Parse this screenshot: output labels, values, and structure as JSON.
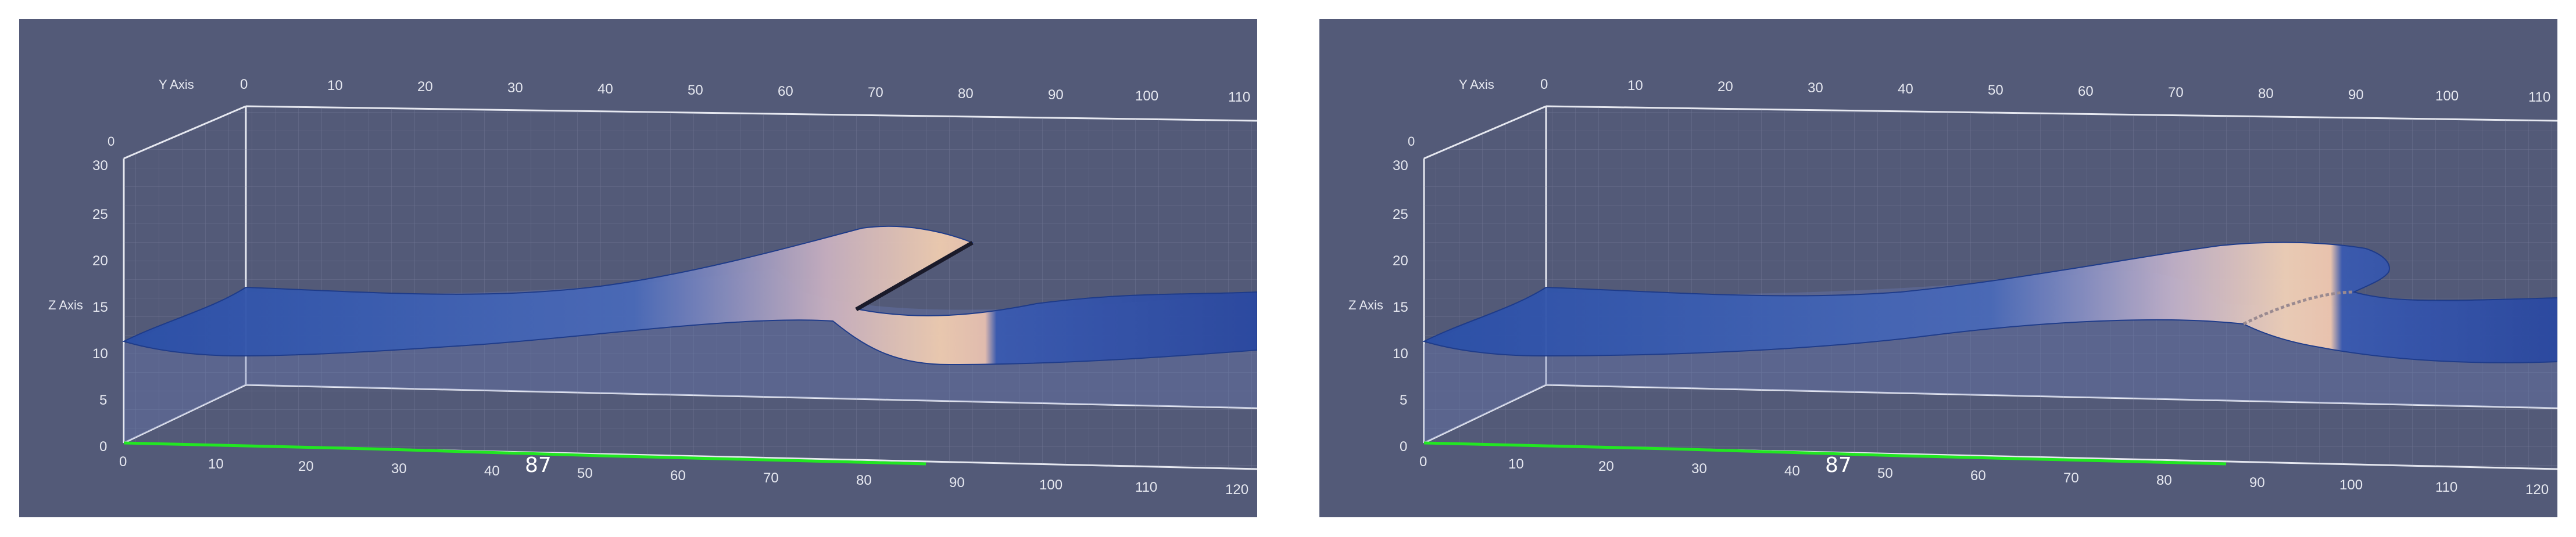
{
  "panels": [
    {
      "id": "left",
      "y_axis_label": "Y Axis",
      "z_axis_label": "Z Axis",
      "y_ticks": [
        "0",
        "10",
        "20",
        "30",
        "40",
        "50",
        "60",
        "70",
        "80",
        "90",
        "100",
        "110"
      ],
      "z_ticks": [
        "0",
        "5",
        "10",
        "15",
        "20",
        "25",
        "30"
      ],
      "x_ticks": [
        "0",
        "10",
        "20",
        "30",
        "40",
        "50",
        "60",
        "70",
        "80",
        "90",
        "100",
        "110",
        "120"
      ],
      "z_top_label": "0",
      "probe_value": "87"
    },
    {
      "id": "right",
      "y_axis_label": "Y Axis",
      "z_axis_label": "Z Axis",
      "y_ticks": [
        "0",
        "10",
        "20",
        "30",
        "40",
        "50",
        "60",
        "70",
        "80",
        "90",
        "100",
        "110"
      ],
      "z_ticks": [
        "0",
        "5",
        "10",
        "15",
        "20",
        "25",
        "30"
      ],
      "x_ticks": [
        "0",
        "10",
        "20",
        "30",
        "40",
        "50",
        "60",
        "70",
        "80",
        "90",
        "100",
        "110",
        "120"
      ],
      "z_top_label": "0",
      "probe_value": "87"
    }
  ],
  "colors": {
    "background": "#535a78",
    "axis_lines": "#e6e8f0",
    "water_deep": "#2a4fa8",
    "water_crest": "#f0cdb0",
    "probe_line": "#22e622"
  }
}
